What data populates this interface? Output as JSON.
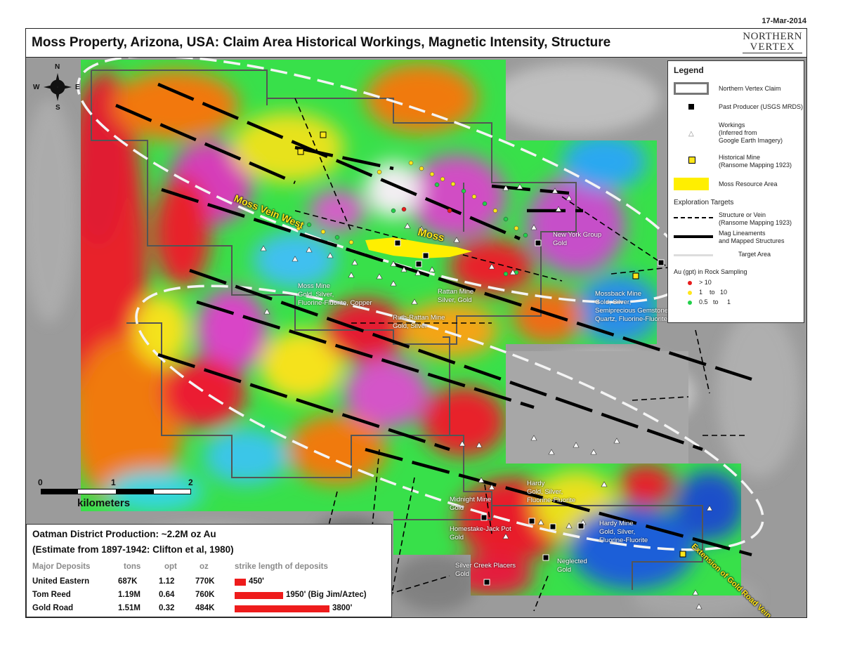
{
  "date": "17-Mar-2014",
  "title": "Moss Property, Arizona, USA: Claim Area Historical Workings, Magnetic Intensity, Structure",
  "logo": {
    "line1": "NORTHERN",
    "line2": "VERTEX"
  },
  "compass": {
    "n": "N",
    "s": "S",
    "e": "E",
    "w": "W"
  },
  "legend": {
    "title": "Legend",
    "claim": "Northern Vertex Claim",
    "past_producer": "Past Producer (USGS MRDS)",
    "workings": "Workings\n(Inferred from\nGoogle Earth Imagery)",
    "historical_mine": "Historical Mine\n(Ransome Mapping 1923)",
    "resource": "Moss Resource Area",
    "targets_title": "Exploration Targets",
    "structure": "Structure or Vein\n(Ransome Mapping 1923)",
    "mag": "Mag Lineaments\nand Mapped Structures",
    "target_area": "Target Area",
    "au_title": "Au (gpt) in Rock Sampling",
    "au_items": [
      {
        "label": "> 10",
        "color": "#e81c1c"
      },
      {
        "label": "1    to   10",
        "color": "#ffe61a"
      },
      {
        "label": "0.5   to     1",
        "color": "#22d04a"
      }
    ]
  },
  "map_labels": {
    "moss_vein_west": "Moss Vein West",
    "moss": "Moss",
    "moss_mine": "Moss Mine\nGold, Silver,\nFluorine-Fluorite, Copper",
    "rattan_mine": "Rattan Mine\nSilver, Gold",
    "ruth_rattan": "Ruth-Rattan Mine\nGold, Silver",
    "new_york": "New York Group\nGold",
    "mossback": "Mossback Mine\nGold, Silver,\nSemiprecious Gemstone,\nQuartz, Fluorine-Fluorite",
    "hardy": "Hardy\nGold, Silver,\nFluorine-Fluorite",
    "hardy_mine": "Hardy Mine\nGold, Silver,\nFluorine-Fluorite",
    "midnight": "Midnight Mine\nGold",
    "homestake": "Homestake-Jack Pot\nGold",
    "silver_creek": "Silver Creek Placers\nGold",
    "neglected": "Neglected\nGold",
    "gold_road": "Extension of Gold Road Vein"
  },
  "scale": {
    "ticks": [
      "0",
      "1",
      "2"
    ],
    "unit": "kilometers"
  },
  "production": {
    "heading": "Oatman District Production: ~2.2M oz Au",
    "subheading": "(Estimate from 1897-1942: Clifton et al, 1980)",
    "columns": [
      "Major Deposits",
      "tons",
      "opt",
      "oz",
      "strike length of deposits"
    ],
    "rows": [
      {
        "name": "United Eastern",
        "tons": "687K",
        "opt": "1.12",
        "oz": "770K",
        "strike": "450'",
        "strike_ft": 450
      },
      {
        "name": "Tom Reed",
        "tons": "1.19M",
        "opt": "0.64",
        "oz": "760K",
        "strike": "1950' (Big Jim/Aztec)",
        "strike_ft": 1950
      },
      {
        "name": "Gold Road",
        "tons": "1.51M",
        "opt": "0.32",
        "oz": "484K",
        "strike": "3800'",
        "strike_ft": 3800
      }
    ]
  }
}
